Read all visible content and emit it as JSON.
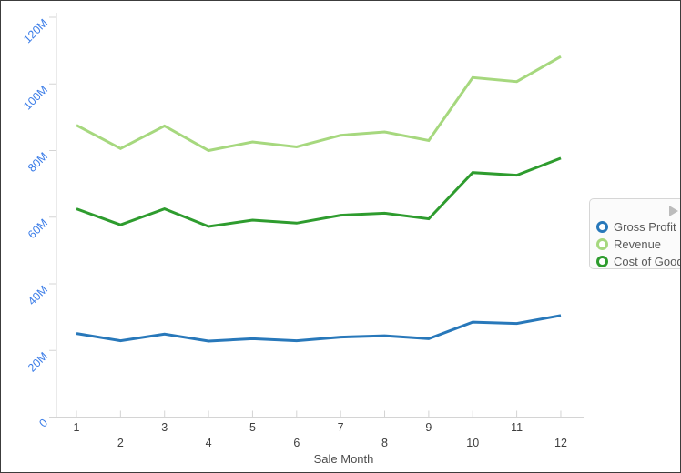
{
  "window": {
    "background": "#ffffff",
    "border_color": "#3c3c3c"
  },
  "chart_data": {
    "type": "line",
    "title": "",
    "xlabel": "Sale Month",
    "ylabel": "",
    "grid": false,
    "legend_position": "right",
    "x": [
      1,
      2,
      3,
      4,
      5,
      6,
      7,
      8,
      9,
      10,
      11,
      12
    ],
    "x_tick_labels": [
      "1",
      "2",
      "3",
      "4",
      "5",
      "6",
      "7",
      "8",
      "9",
      "10",
      "11",
      "12"
    ],
    "y_tick_values": [
      0,
      20,
      40,
      60,
      80,
      100,
      120
    ],
    "y_tick_labels": [
      "0",
      "20M",
      "40M",
      "60M",
      "80M",
      "100M",
      "120M"
    ],
    "ylim": [
      0,
      120
    ],
    "values_unit": "M",
    "series": [
      {
        "name": "Gross Profit",
        "color": "#2878ba",
        "values": [
          25.1,
          22.9,
          24.9,
          22.8,
          23.5,
          22.9,
          24.0,
          24.4,
          23.5,
          28.5,
          28.1,
          30.5
        ]
      },
      {
        "name": "Revenue",
        "color": "#a6d87e",
        "values": [
          87.6,
          80.6,
          87.4,
          80.0,
          82.6,
          81.1,
          84.6,
          85.6,
          83.0,
          101.9,
          100.7,
          108.2
        ]
      },
      {
        "name": "Cost of Goods",
        "color": "#2e9c2e",
        "values": [
          62.5,
          57.7,
          62.5,
          57.2,
          59.1,
          58.2,
          60.6,
          61.2,
          59.5,
          73.4,
          72.6,
          77.7
        ]
      }
    ]
  },
  "axis_style": {
    "y_label_color": "#3a7ce8",
    "x_label_color": "#3f3f3f",
    "axis_title_color": "#4d4d4d",
    "axis_line_color": "#d4d4d4"
  },
  "legend": {
    "expand_arrow_icon": "right-triangle"
  }
}
